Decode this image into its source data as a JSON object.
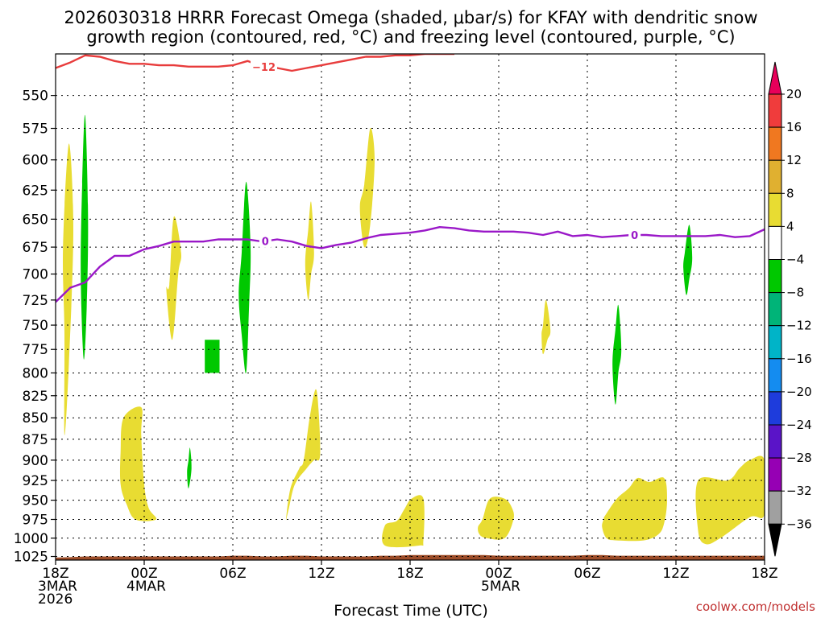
{
  "chart_data": {
    "type": "contour",
    "title_line1": "2026030318 HRRR Forecast Omega (shaded, μbar/s) for KFAY with dendritic snow",
    "title_line2": "growth region (contoured, red, °C) and freezing level (contoured, purple, °C)",
    "xlabel": "Forecast Time (UTC)",
    "credit": "coolwx.com/models",
    "x_range_hours": [
      0,
      48
    ],
    "y_range_hpa": [
      1030,
      520
    ],
    "y_ticks": [
      550,
      575,
      600,
      625,
      650,
      675,
      700,
      725,
      750,
      775,
      800,
      825,
      850,
      875,
      900,
      925,
      950,
      975,
      1000,
      1025
    ],
    "x_ticks": [
      {
        "h": 0,
        "lines": [
          "18Z",
          "3MAR",
          "2026"
        ]
      },
      {
        "h": 6,
        "lines": [
          "00Z",
          "4MAR"
        ]
      },
      {
        "h": 12,
        "lines": [
          "06Z"
        ]
      },
      {
        "h": 18,
        "lines": [
          "12Z"
        ]
      },
      {
        "h": 24,
        "lines": [
          "18Z"
        ]
      },
      {
        "h": 30,
        "lines": [
          "00Z",
          "5MAR"
        ]
      },
      {
        "h": 36,
        "lines": [
          "06Z"
        ]
      },
      {
        "h": 42,
        "lines": [
          "12Z"
        ]
      },
      {
        "h": 48,
        "lines": [
          "18Z"
        ]
      }
    ],
    "colorbar": {
      "labels": [
        "20",
        "16",
        "12",
        "8",
        "4",
        "−4",
        "−8",
        "−12",
        "−16",
        "−20",
        "−24",
        "−28",
        "−32",
        "−36"
      ],
      "colors": [
        "#e8005a",
        "#f03c3c",
        "#f07820",
        "#e0b030",
        "#e8dc32",
        "#ffffff",
        "#00c800",
        "#00b478",
        "#00b4c8",
        "#148cf0",
        "#1e3cdc",
        "#5a14c8",
        "#9600b4",
        "#a0a0a0",
        "#000000"
      ]
    },
    "series": [
      {
        "name": "Freezing level (0 °C)",
        "color": "#9a18c8",
        "label": "0",
        "label_positions": [
          14.2,
          39.2
        ],
        "x": [
          0,
          1,
          2,
          3,
          4,
          5,
          6,
          7,
          8,
          9,
          10,
          11,
          12,
          13,
          14,
          15,
          16,
          17,
          18,
          19,
          20,
          21,
          22,
          23,
          24,
          25,
          26,
          27,
          28,
          29,
          30,
          31,
          32,
          33,
          34,
          35,
          36,
          37,
          38,
          39,
          40,
          41,
          42,
          43,
          44,
          45,
          46,
          47,
          48
        ],
        "y": [
          727,
          713,
          708,
          693,
          683,
          683,
          677,
          674,
          670,
          670,
          670,
          668,
          668,
          668,
          670,
          668,
          670,
          674,
          676,
          673,
          671,
          667,
          664,
          663,
          662,
          660,
          657,
          658,
          660,
          661,
          661,
          661,
          662,
          664,
          661,
          665,
          664,
          666,
          665,
          664,
          664,
          665,
          665,
          665,
          665,
          664,
          666,
          665,
          659
        ]
      },
      {
        "name": "Dendritic growth region (−12 °C)",
        "color": "#e83c3c",
        "label": "−12",
        "label_positions": [
          14.1
        ],
        "x": [
          0,
          1,
          2,
          3,
          4,
          5,
          6,
          7,
          8,
          9,
          10,
          11,
          12,
          13,
          14,
          15,
          16,
          17,
          18,
          19,
          20,
          21,
          22,
          23,
          24,
          25,
          26,
          27
        ],
        "y": [
          530,
          526,
          521,
          522,
          525,
          527,
          527,
          528,
          528,
          529,
          529,
          529,
          528,
          525,
          529,
          530,
          532,
          530,
          528,
          526,
          524,
          522,
          522,
          521,
          521,
          520,
          520,
          520
        ]
      }
    ],
    "shaded_regions": [
      {
        "color": "#e8dc32",
        "hours": [
          0.5,
          0.9,
          1.2,
          0.9,
          0.6,
          0.6
        ],
        "p": [
          675,
          587,
          660,
          790,
          870,
          760
        ]
      },
      {
        "color": "#00c800",
        "hours": [
          1.8,
          2.0,
          2.2,
          2.1,
          1.9,
          1.7
        ],
        "p": [
          620,
          565,
          650,
          735,
          785,
          700
        ]
      },
      {
        "color": "#e8dc32",
        "hours": [
          7.7,
          8.0,
          8.5,
          8.3,
          7.9,
          7.5
        ],
        "p": [
          710,
          648,
          680,
          700,
          765,
          715
        ]
      },
      {
        "color": "#00c800",
        "hours": [
          10.1,
          11.1,
          11.1,
          10.1
        ],
        "p": [
          765,
          765,
          800,
          800
        ]
      },
      {
        "color": "#00c800",
        "hours": [
          12.6,
          12.9,
          13.2,
          13.1,
          12.9,
          12.6,
          12.4
        ],
        "p": [
          680,
          618,
          675,
          730,
          800,
          760,
          720
        ]
      },
      {
        "color": "#e8dc32",
        "hours": [
          17.1,
          17.3,
          17.5,
          17.3,
          17.1,
          16.9
        ],
        "p": [
          660,
          635,
          680,
          700,
          725,
          690
        ]
      },
      {
        "color": "#e8dc32",
        "hours": [
          20.9,
          21.3,
          21.6,
          21.3,
          20.9,
          20.6
        ],
        "p": [
          620,
          575,
          600,
          655,
          675,
          640
        ]
      },
      {
        "color": "#e8dc32",
        "hours": [
          4.6,
          5.8,
          5.8,
          6.0,
          6.3,
          6.8,
          5.4,
          4.8,
          4.4,
          4.4
        ],
        "p": [
          850,
          838,
          870,
          930,
          960,
          975,
          975,
          955,
          930,
          890
        ]
      },
      {
        "color": "#00c800",
        "hours": [
          9.0,
          9.1,
          9.2,
          9.0,
          8.9
        ],
        "p": [
          900,
          885,
          910,
          935,
          915
        ]
      },
      {
        "color": "#e8dc32",
        "hours": [
          16.8,
          17.2,
          17.6,
          17.8,
          17.9,
          17.5,
          17.0,
          16.2,
          15.8,
          15.6,
          15.9,
          16.5
        ],
        "p": [
          900,
          850,
          818,
          840,
          895,
          900,
          910,
          930,
          960,
          975,
          935,
          910
        ]
      },
      {
        "color": "#e8dc32",
        "hours": [
          22.3,
          23.1,
          23.6,
          24.1,
          24.9,
          24.9,
          24.6,
          22.3
        ],
        "p": [
          983,
          977,
          962,
          948,
          948,
          1003,
          1010,
          1010
        ]
      },
      {
        "color": "#e8dc32",
        "hours": [
          28.9,
          29.4,
          30.4,
          30.9,
          31.0,
          30.4,
          29.2,
          28.7,
          28.6
        ],
        "p": [
          975,
          948,
          948,
          960,
          975,
          1000,
          1000,
          995,
          985
        ]
      },
      {
        "color": "#e8dc32",
        "hours": [
          33.0,
          33.2,
          33.5,
          33.3,
          33.0,
          32.9
        ],
        "p": [
          750,
          725,
          755,
          765,
          780,
          760
        ]
      },
      {
        "color": "#00c800",
        "hours": [
          37.9,
          38.1,
          38.3,
          38.1,
          37.9,
          37.7
        ],
        "p": [
          755,
          730,
          775,
          800,
          835,
          790
        ]
      },
      {
        "color": "#e8dc32",
        "hours": [
          37.2,
          38.0,
          38.8,
          39.4,
          40.2,
          41.2,
          41.4,
          41.2,
          40.8,
          39.8,
          38.0,
          37.3,
          37.0,
          37.1
        ],
        "p": [
          970,
          948,
          935,
          922,
          927,
          922,
          950,
          980,
          995,
          1003,
          1003,
          1000,
          985,
          975
        ]
      },
      {
        "color": "#00c800",
        "hours": [
          42.6,
          42.9,
          43.1,
          42.9,
          42.7,
          42.5
        ],
        "p": [
          680,
          655,
          685,
          705,
          720,
          695
        ]
      },
      {
        "color": "#e8dc32",
        "hours": [
          43.5,
          45.5,
          46.3,
          47.0,
          48.0,
          48.0,
          47.0,
          45.0,
          44.0,
          43.5
        ],
        "p": [
          925,
          925,
          910,
          900,
          900,
          968,
          972,
          1000,
          1008,
          990
        ]
      }
    ],
    "terrain": {
      "color": "#9c4c28",
      "hours": [
        0,
        1,
        2,
        3,
        4,
        5,
        6,
        7,
        8,
        9,
        10,
        11,
        12,
        13,
        14,
        15,
        16,
        17,
        18,
        19,
        20,
        21,
        22,
        23,
        24,
        25,
        26,
        27,
        28,
        29,
        30,
        31,
        32,
        33,
        34,
        35,
        36,
        37,
        38,
        39,
        40,
        41,
        42,
        43,
        44,
        45,
        46,
        47,
        48
      ],
      "surface_hpa": [
        1026.5,
        1026,
        1025,
        1025,
        1025,
        1025,
        1025,
        1025,
        1025,
        1025,
        1025,
        1025,
        1024,
        1024,
        1025,
        1025,
        1024,
        1024,
        1025,
        1025,
        1025,
        1025,
        1024,
        1024,
        1023,
        1023,
        1023,
        1023,
        1023,
        1023,
        1024,
        1024,
        1024,
        1024,
        1024,
        1024,
        1023,
        1023,
        1024,
        1024,
        1024,
        1024,
        1024,
        1024,
        1024,
        1024,
        1024,
        1024,
        1024
      ]
    }
  }
}
